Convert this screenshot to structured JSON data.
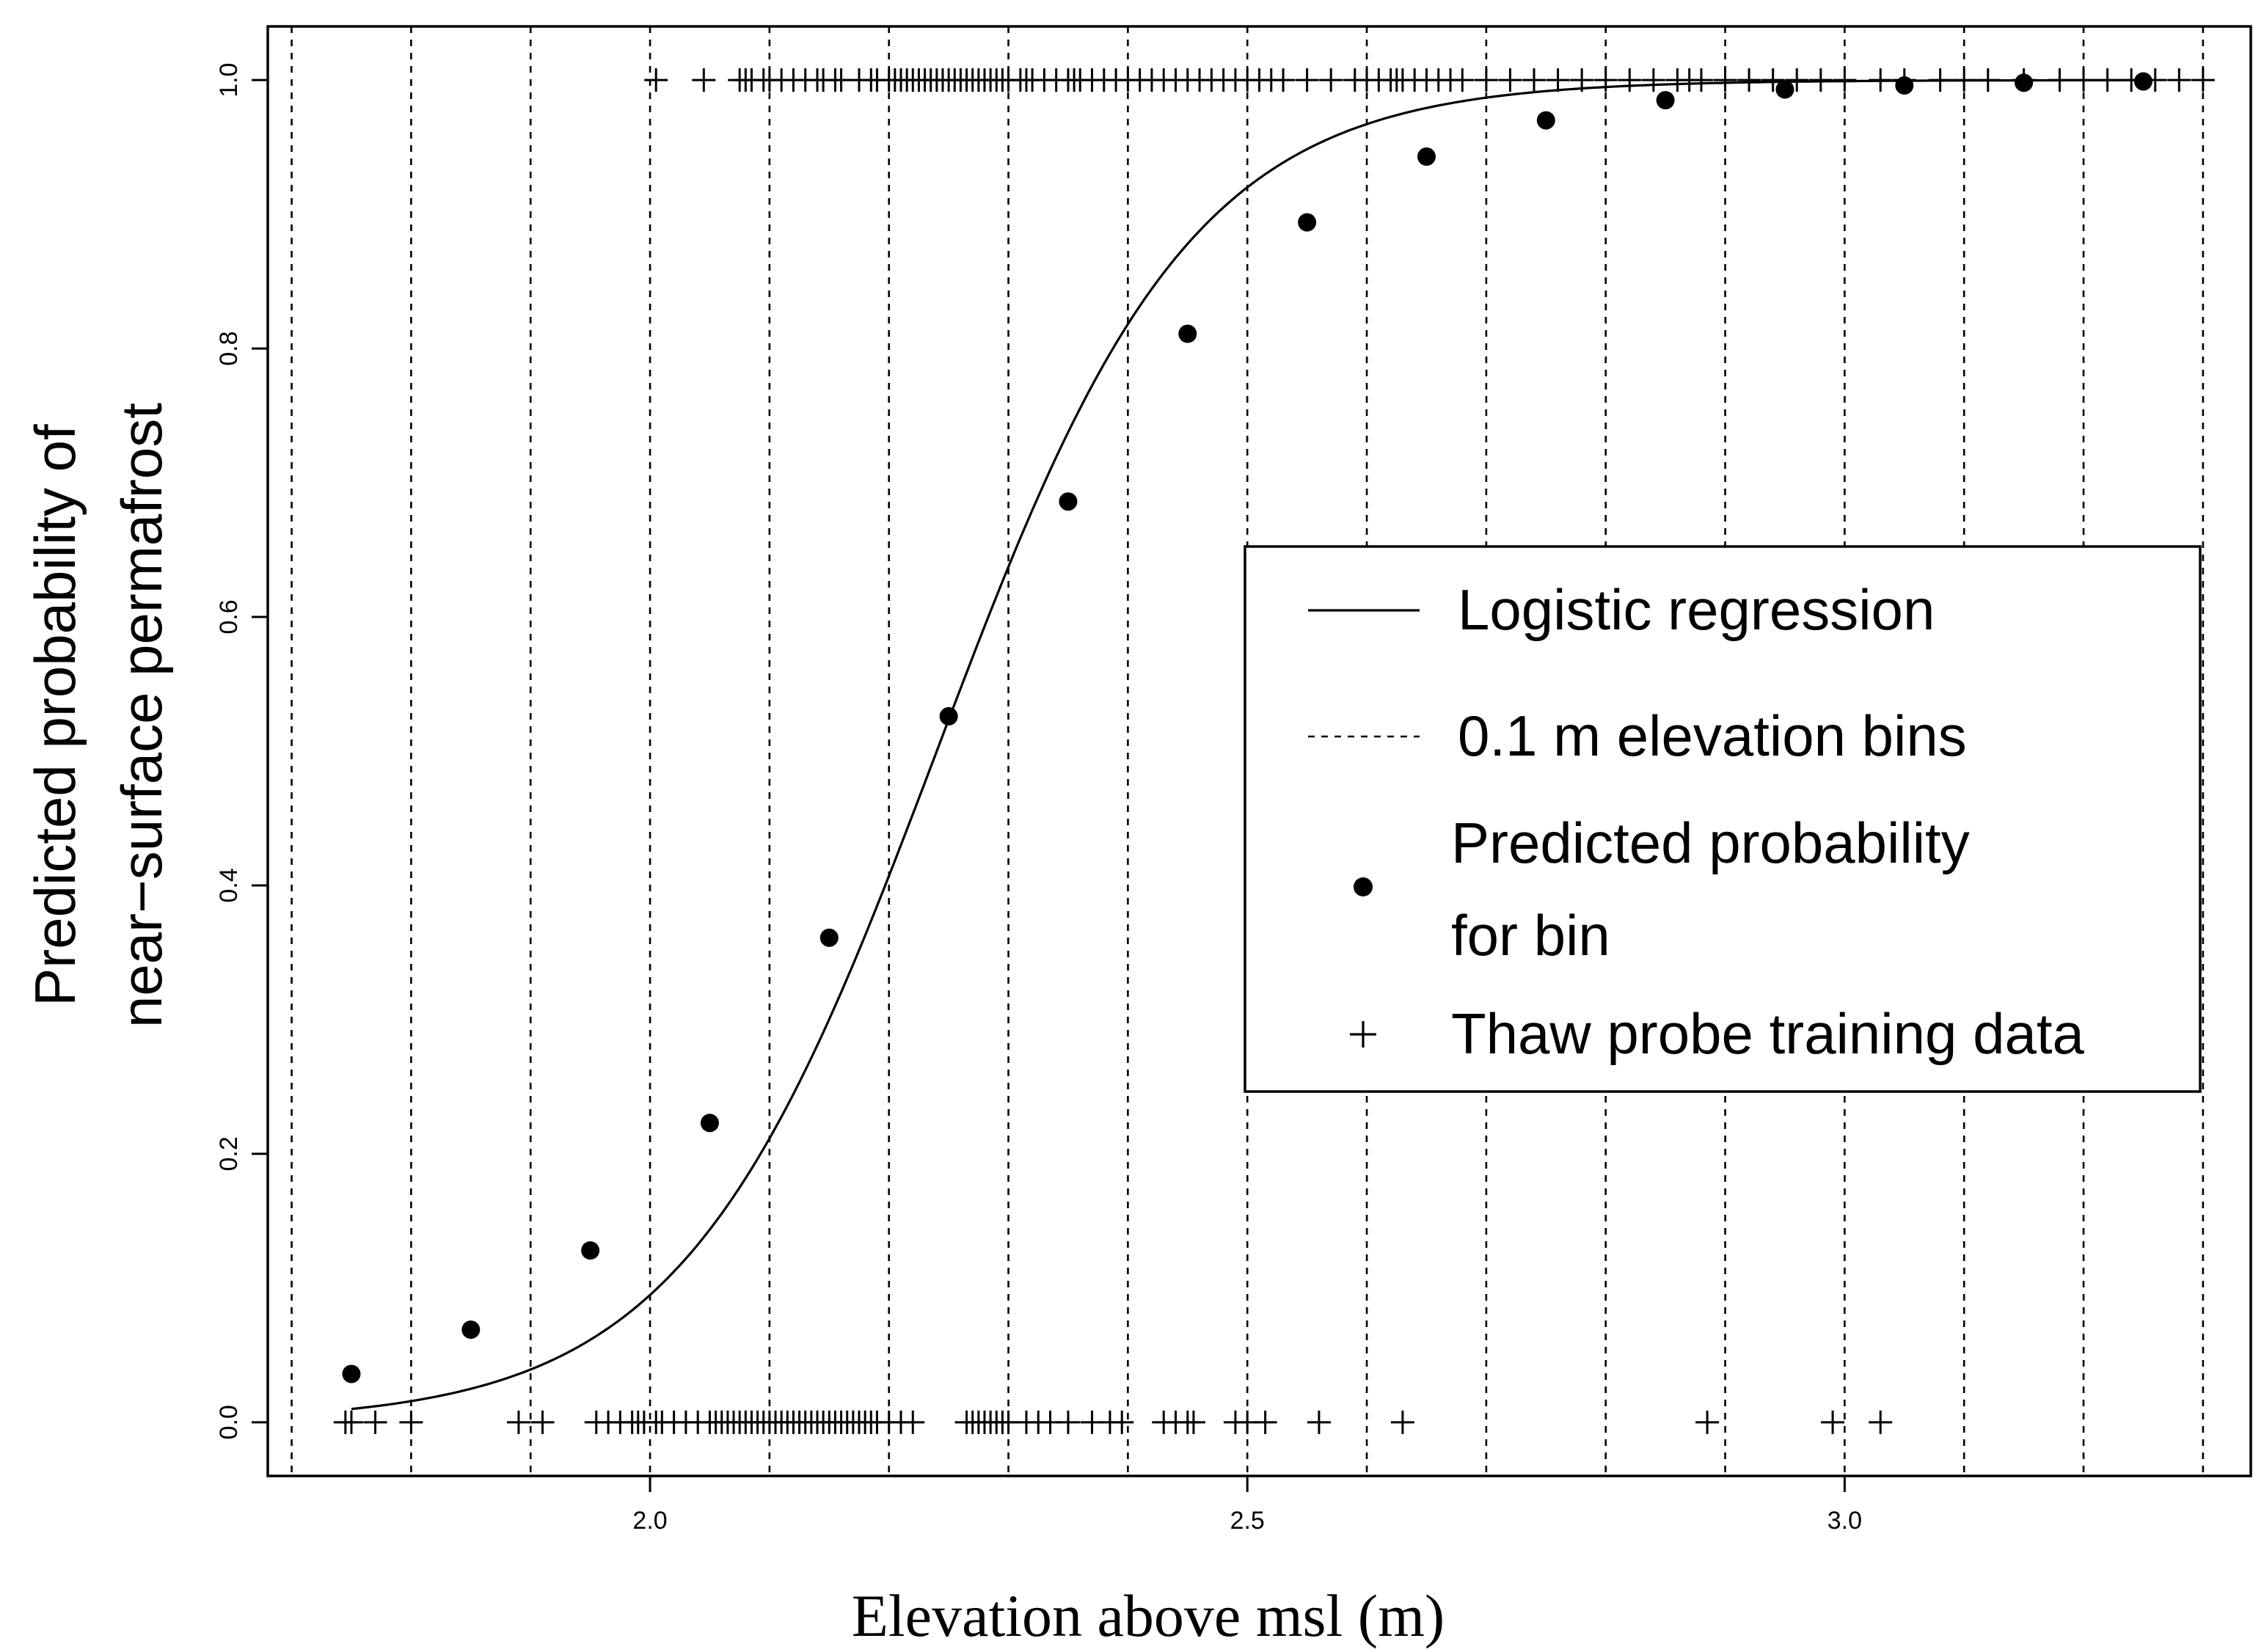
{
  "chart_data": {
    "type": "line",
    "xlabel": "Elevation above msl (m)",
    "ylabel_line1": "Predicted probability of",
    "ylabel_line2": "near−surface permafrost",
    "xlim": [
      1.68,
      3.34
    ],
    "ylim": [
      -0.04,
      1.04
    ],
    "x_ticks": [
      2.0,
      2.5,
      3.0
    ],
    "x_tick_labels": [
      "2.0",
      "2.5",
      "3.0"
    ],
    "y_ticks": [
      0.0,
      0.2,
      0.4,
      0.6,
      0.8,
      1.0
    ],
    "y_tick_labels": [
      "0.0",
      "0.2",
      "0.4",
      "0.6",
      "0.8",
      "1.0"
    ],
    "logistic_curve": {
      "midpoint": 2.24,
      "slope": 9.4,
      "x_range": [
        1.75,
        3.25
      ]
    },
    "bin_edges": [
      1.7,
      1.8,
      1.9,
      2.0,
      2.1,
      2.2,
      2.3,
      2.4,
      2.5,
      2.6,
      2.7,
      2.8,
      2.9,
      3.0,
      3.1,
      3.2,
      3.3
    ],
    "bin_points": {
      "name": "Predicted probability for bin",
      "x": [
        1.75,
        1.85,
        1.95,
        2.05,
        2.15,
        2.25,
        2.35,
        2.45,
        2.55,
        2.65,
        2.75,
        2.85,
        2.95,
        3.05,
        3.15,
        3.25
      ],
      "y": [
        0.036,
        0.069,
        0.128,
        0.223,
        0.361,
        0.526,
        0.686,
        0.811,
        0.894,
        0.943,
        0.97,
        0.985,
        0.993,
        0.996,
        0.998,
        0.999
      ]
    },
    "training_data": {
      "name": "Thaw probe training data",
      "present_y": 1,
      "present_x": [
        2.005,
        2.045,
        2.075,
        2.08,
        2.085,
        2.095,
        2.1,
        2.11,
        2.12,
        2.13,
        2.14,
        2.145,
        2.155,
        2.16,
        2.175,
        2.185,
        2.19,
        2.2,
        2.205,
        2.21,
        2.215,
        2.22,
        2.225,
        2.23,
        2.235,
        2.24,
        2.245,
        2.25,
        2.255,
        2.26,
        2.265,
        2.27,
        2.275,
        2.28,
        2.285,
        2.29,
        2.295,
        2.3,
        2.31,
        2.315,
        2.32,
        2.33,
        2.34,
        2.35,
        2.355,
        2.36,
        2.37,
        2.38,
        2.39,
        2.4,
        2.41,
        2.42,
        2.43,
        2.44,
        2.45,
        2.46,
        2.47,
        2.48,
        2.49,
        2.5,
        2.51,
        2.52,
        2.53,
        2.55,
        2.57,
        2.59,
        2.6,
        2.61,
        2.62,
        2.625,
        2.63,
        2.64,
        2.65,
        2.66,
        2.67,
        2.68,
        2.7,
        2.72,
        2.74,
        2.76,
        2.78,
        2.8,
        2.82,
        2.84,
        2.86,
        2.87,
        2.88,
        2.9,
        2.92,
        2.94,
        2.96,
        2.98,
        3.0,
        3.03,
        3.05,
        3.08,
        3.1,
        3.12,
        3.15,
        3.18,
        3.2,
        3.22,
        3.24,
        3.26,
        3.28,
        3.3
      ],
      "absent_y": 0,
      "absent_x": [
        1.745,
        1.75,
        1.77,
        1.8,
        1.89,
        1.91,
        1.955,
        1.965,
        1.975,
        1.985,
        1.99,
        1.995,
        2.005,
        2.01,
        2.02,
        2.03,
        2.04,
        2.05,
        2.055,
        2.06,
        2.065,
        2.07,
        2.075,
        2.08,
        2.085,
        2.09,
        2.095,
        2.1,
        2.105,
        2.11,
        2.115,
        2.12,
        2.125,
        2.13,
        2.135,
        2.14,
        2.145,
        2.15,
        2.155,
        2.16,
        2.165,
        2.17,
        2.175,
        2.18,
        2.185,
        2.19,
        2.2,
        2.21,
        2.22,
        2.265,
        2.27,
        2.275,
        2.28,
        2.285,
        2.29,
        2.295,
        2.3,
        2.315,
        2.325,
        2.335,
        2.35,
        2.37,
        2.385,
        2.395,
        2.43,
        2.44,
        2.45,
        2.455,
        2.49,
        2.5,
        2.515,
        2.56,
        2.63,
        2.885,
        2.99,
        3.03
      ]
    },
    "legend": {
      "placement": "center-right",
      "entries": [
        {
          "symbol": "line",
          "label": "Logistic regression"
        },
        {
          "symbol": "dashed",
          "label": "0.1 m elevation bins"
        },
        {
          "symbol": "dot",
          "label_line1": "Predicted probability",
          "label_line2": "for bin"
        },
        {
          "symbol": "plus",
          "label": "Thaw probe training data"
        }
      ]
    }
  }
}
